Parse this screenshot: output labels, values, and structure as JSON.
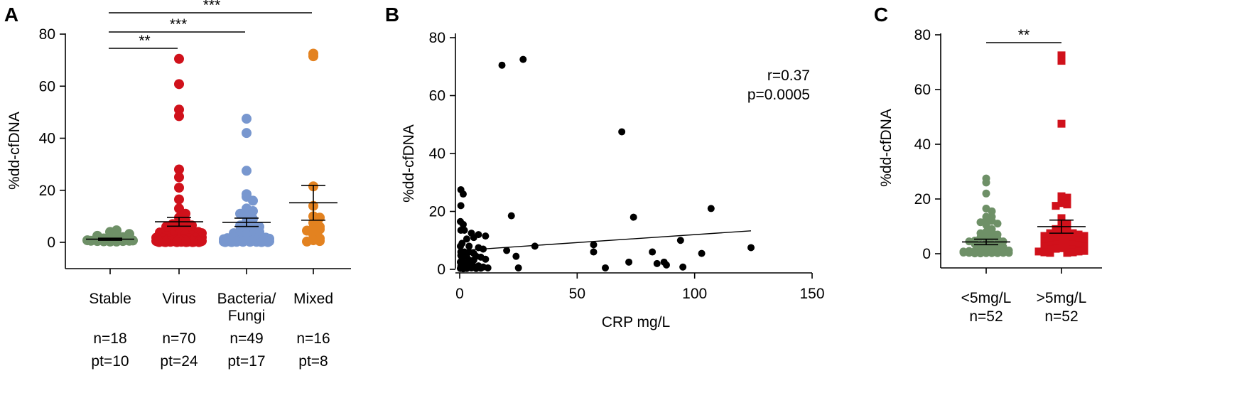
{
  "chart_data": [
    {
      "panel": "A",
      "type": "scatter",
      "ylabel": "%dd-cfDNA",
      "ylim": [
        0,
        80
      ],
      "yticks": [
        0,
        20,
        40,
        60,
        80
      ],
      "categories": [
        "Stable",
        "Virus",
        "Bacteria/\nFungi",
        "Mixed"
      ],
      "category_lines": [
        [
          "Stable"
        ],
        [
          "Virus"
        ],
        [
          "Bacteria/",
          "Fungi"
        ],
        [
          "Mixed"
        ]
      ],
      "counts_n": [
        "n=18",
        "n=70",
        "n=49",
        "n=16"
      ],
      "counts_pt": [
        "pt=10",
        "pt=24",
        "pt=17",
        "pt=8"
      ],
      "colors": [
        "#6e9067",
        "#d0111b",
        "#7897cf",
        "#e38220"
      ],
      "series": [
        {
          "mean": 1.2,
          "sem": 0.4,
          "values": [
            0.3,
            0.3,
            0.4,
            0.5,
            0.5,
            0.6,
            0.6,
            0.7,
            0.8,
            0.9,
            1.0,
            1.2,
            1.5,
            2.0,
            2.5,
            3.2,
            4.0,
            4.6
          ]
        },
        {
          "mean": 7.9,
          "sem": 1.7,
          "values": [
            70.5,
            60.8,
            51.0,
            48.5,
            28.0,
            25.0,
            21.0,
            16.5,
            13.0,
            11.0,
            9.5,
            8.5,
            8.0,
            7.5,
            7.0,
            6.5,
            6.0,
            5.5,
            5.0,
            4.8,
            4.5,
            4.2,
            4.0,
            3.8,
            3.5,
            3.3,
            3.0,
            2.8,
            2.6,
            2.4,
            2.2,
            2.0,
            1.9,
            1.8,
            1.7,
            1.6,
            1.5,
            1.4,
            1.3,
            1.2,
            1.1,
            1.0,
            0.9,
            0.8,
            0.8,
            0.7,
            0.7,
            0.6,
            0.6,
            0.5,
            0.5,
            0.5,
            0.4,
            0.4,
            0.4,
            0.3,
            0.3,
            0.3,
            0.3,
            0.2,
            0.2,
            0.2,
            0.2,
            0.2,
            0.1,
            0.1,
            0.1,
            0.1,
            0.1,
            0.1
          ]
        },
        {
          "mean": 7.7,
          "sem": 1.6,
          "values": [
            47.5,
            42.0,
            27.5,
            18.5,
            17.5,
            16.0,
            13.0,
            12.0,
            11.0,
            10.0,
            9.0,
            8.0,
            7.0,
            6.5,
            6.0,
            5.5,
            5.0,
            4.5,
            4.0,
            3.5,
            3.0,
            2.8,
            2.5,
            2.2,
            2.0,
            1.8,
            1.6,
            1.4,
            1.2,
            1.0,
            0.9,
            0.8,
            0.7,
            0.6,
            0.5,
            0.5,
            0.4,
            0.4,
            0.3,
            0.3,
            0.3,
            0.2,
            0.2,
            0.2,
            0.2,
            0.1,
            0.1,
            0.1,
            0.1
          ]
        },
        {
          "mean": 15.2,
          "sem": 6.7,
          "values": [
            72.5,
            71.5,
            21.5,
            14.0,
            10.0,
            9.5,
            7.5,
            6.0,
            5.5,
            5.0,
            4.5,
            3.0,
            1.5,
            0.8,
            0.5,
            0.3
          ]
        }
      ],
      "significance": [
        {
          "from": "Stable",
          "to": "Virus",
          "label": "**"
        },
        {
          "from": "Stable",
          "to": "Bacteria/\nFungi",
          "label": "***"
        },
        {
          "from": "Stable",
          "to": "Mixed",
          "label": "***"
        }
      ]
    },
    {
      "panel": "B",
      "type": "scatter",
      "xlabel": "CRP mg/L",
      "ylabel": "%dd-cfDNA",
      "xlim": [
        0,
        150
      ],
      "ylim": [
        0,
        80
      ],
      "xticks": [
        0,
        50,
        100,
        150
      ],
      "yticks": [
        0,
        20,
        40,
        60,
        80
      ],
      "points": [
        [
          0.5,
          27.5
        ],
        [
          1.5,
          26
        ],
        [
          0.5,
          22
        ],
        [
          0.3,
          16.5
        ],
        [
          1.5,
          15.5
        ],
        [
          0.5,
          13.5
        ],
        [
          2,
          13.5
        ],
        [
          5,
          12.5
        ],
        [
          8,
          12
        ],
        [
          11,
          11.5
        ],
        [
          6,
          11
        ],
        [
          3,
          10.5
        ],
        [
          1,
          9
        ],
        [
          0.3,
          8
        ],
        [
          4,
          8
        ],
        [
          8,
          7.5
        ],
        [
          10,
          7
        ],
        [
          0.5,
          6
        ],
        [
          2,
          6
        ],
        [
          4,
          6
        ],
        [
          6,
          5.5
        ],
        [
          0.5,
          4.8
        ],
        [
          3,
          4.5
        ],
        [
          7,
          4.5
        ],
        [
          9,
          4.2
        ],
        [
          1,
          3.5
        ],
        [
          4,
          3.2
        ],
        [
          6,
          3.2
        ],
        [
          11,
          3.5
        ],
        [
          0.3,
          2.5
        ],
        [
          2,
          2.2
        ],
        [
          3,
          2
        ],
        [
          5,
          2
        ],
        [
          0.5,
          1.2
        ],
        [
          2,
          1
        ],
        [
          4,
          0.8
        ],
        [
          6,
          1
        ],
        [
          8,
          1.2
        ],
        [
          10,
          0.8
        ],
        [
          0.3,
          0.3
        ],
        [
          1.5,
          0.2
        ],
        [
          3,
          0.3
        ],
        [
          5,
          0.5
        ],
        [
          7,
          0.3
        ],
        [
          9,
          0.4
        ],
        [
          12,
          0.5
        ],
        [
          18,
          70.5
        ],
        [
          27,
          72.5
        ],
        [
          20,
          6.5
        ],
        [
          22,
          18.5
        ],
        [
          24,
          4.5
        ],
        [
          25,
          0.5
        ],
        [
          32,
          8
        ],
        [
          57,
          8.5
        ],
        [
          57,
          6
        ],
        [
          62,
          0.5
        ],
        [
          69,
          47.5
        ],
        [
          72,
          2.5
        ],
        [
          74,
          18
        ],
        [
          82,
          6
        ],
        [
          84,
          2
        ],
        [
          87,
          2.5
        ],
        [
          88,
          1.5
        ],
        [
          94,
          10
        ],
        [
          95,
          0.8
        ],
        [
          103,
          5.5
        ],
        [
          107,
          21
        ],
        [
          124,
          7.5
        ]
      ],
      "fit": {
        "x": [
          0,
          124
        ],
        "y": [
          6.5,
          13.3
        ]
      },
      "annotations": [
        "r=0.37",
        "p=0.0005"
      ]
    },
    {
      "panel": "C",
      "type": "scatter",
      "ylabel": "%dd-cfDNA",
      "ylim": [
        0,
        80
      ],
      "yticks": [
        0,
        20,
        40,
        60,
        80
      ],
      "categories": [
        "<5mg/L",
        ">5mg/L"
      ],
      "counts_n": [
        "n=52",
        "n=52"
      ],
      "colors": [
        "#6e9067",
        "#d0111b"
      ],
      "markers": [
        "circle",
        "square"
      ],
      "series": [
        {
          "mean": 4.3,
          "sem": 1.0,
          "values": [
            27.5,
            26,
            22,
            16.5,
            15.5,
            13.5,
            13.5,
            12.5,
            12,
            11.5,
            11,
            10.5,
            9,
            8,
            8,
            7.5,
            7,
            6,
            6,
            6,
            5.5,
            4.8,
            4.5,
            4.5,
            4.2,
            3.5,
            3.2,
            3.2,
            3.5,
            2.5,
            2.2,
            2,
            2,
            1.2,
            1,
            0.8,
            1,
            1.2,
            0.8,
            0.3,
            0.2,
            0.3,
            0.5,
            0.3,
            0.4,
            0.5,
            0.2,
            0.1,
            0.3,
            0.2,
            0.1,
            0.4
          ]
        },
        {
          "mean": 9.9,
          "sem": 2.4,
          "values": [
            72.5,
            70.5,
            47.5,
            21,
            20.5,
            18.5,
            18,
            17.5,
            13,
            12.5,
            11,
            10,
            9.5,
            9,
            8.5,
            8.5,
            8,
            7.5,
            7.5,
            7,
            6.5,
            6.5,
            6,
            6,
            5.5,
            5.5,
            5,
            5,
            4.5,
            4.5,
            4,
            4,
            3.5,
            3.5,
            3,
            3,
            2.5,
            2.5,
            2,
            2,
            1.8,
            1.5,
            1.5,
            1.2,
            1,
            1,
            0.8,
            0.8,
            0.5,
            0.5,
            0.3,
            0.3
          ]
        }
      ],
      "significance": [
        {
          "from": "<5mg/L",
          "to": ">5mg/L",
          "label": "**"
        }
      ]
    }
  ]
}
